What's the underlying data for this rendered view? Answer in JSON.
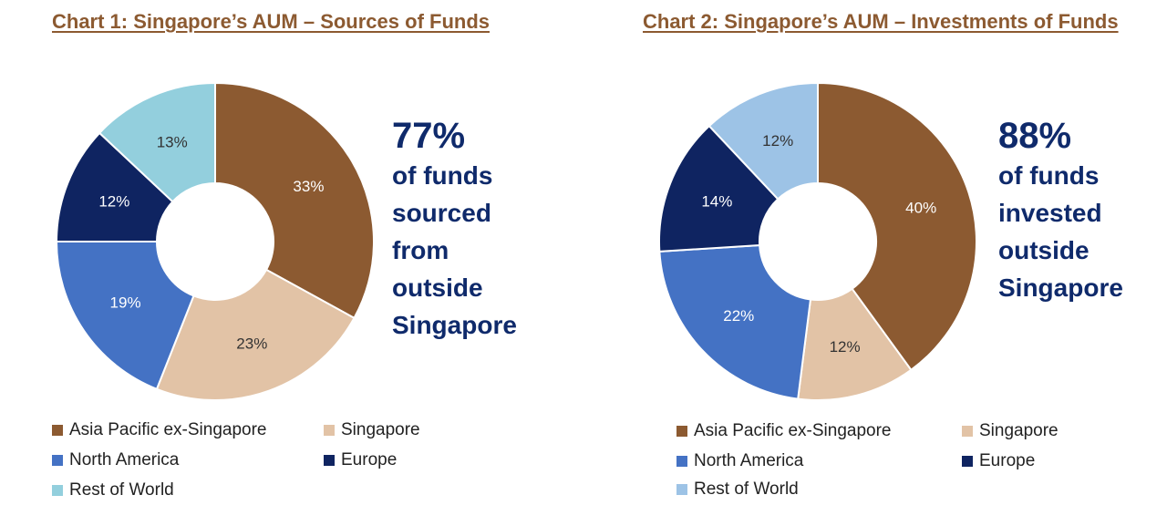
{
  "chart_data": [
    {
      "type": "pie",
      "title": "Chart 1: Singapore’s AUM – Sources of Funds",
      "categories": [
        "Asia Pacific ex-Singapore",
        "Singapore",
        "North America",
        "Europe",
        "Rest of World"
      ],
      "values": [
        33,
        23,
        19,
        12,
        13
      ],
      "labels": [
        "33%",
        "23%",
        "19%",
        "12%",
        "13%"
      ],
      "colors": [
        "#8c5a31",
        "#e2c3a6",
        "#4472c4",
        "#0f2461",
        "#93cfdd"
      ],
      "label_colors": [
        "#ffffff",
        "#333333",
        "#ffffff",
        "#ffffff",
        "#333333"
      ],
      "donut": true,
      "legend_placement": "bottom",
      "callout": {
        "big": "77%",
        "lines": [
          "of funds",
          "sourced",
          "from",
          "outside",
          "Singapore"
        ]
      }
    },
    {
      "type": "pie",
      "title": "Chart 2: Singapore’s AUM – Investments of Funds",
      "categories": [
        "Asia Pacific ex-Singapore",
        "Singapore",
        "North America",
        "Europe",
        "Rest of World"
      ],
      "values": [
        40,
        12,
        22,
        14,
        12
      ],
      "labels": [
        "40%",
        "12%",
        "22%",
        "14%",
        "12%"
      ],
      "colors": [
        "#8c5a31",
        "#e2c3a6",
        "#4472c4",
        "#0f2461",
        "#9dc3e6"
      ],
      "label_colors": [
        "#ffffff",
        "#333333",
        "#ffffff",
        "#ffffff",
        "#333333"
      ],
      "donut": true,
      "legend_placement": "bottom",
      "callout": {
        "big": "88%",
        "lines": [
          "of funds",
          "invested",
          "outside",
          "Singapore"
        ]
      }
    }
  ]
}
